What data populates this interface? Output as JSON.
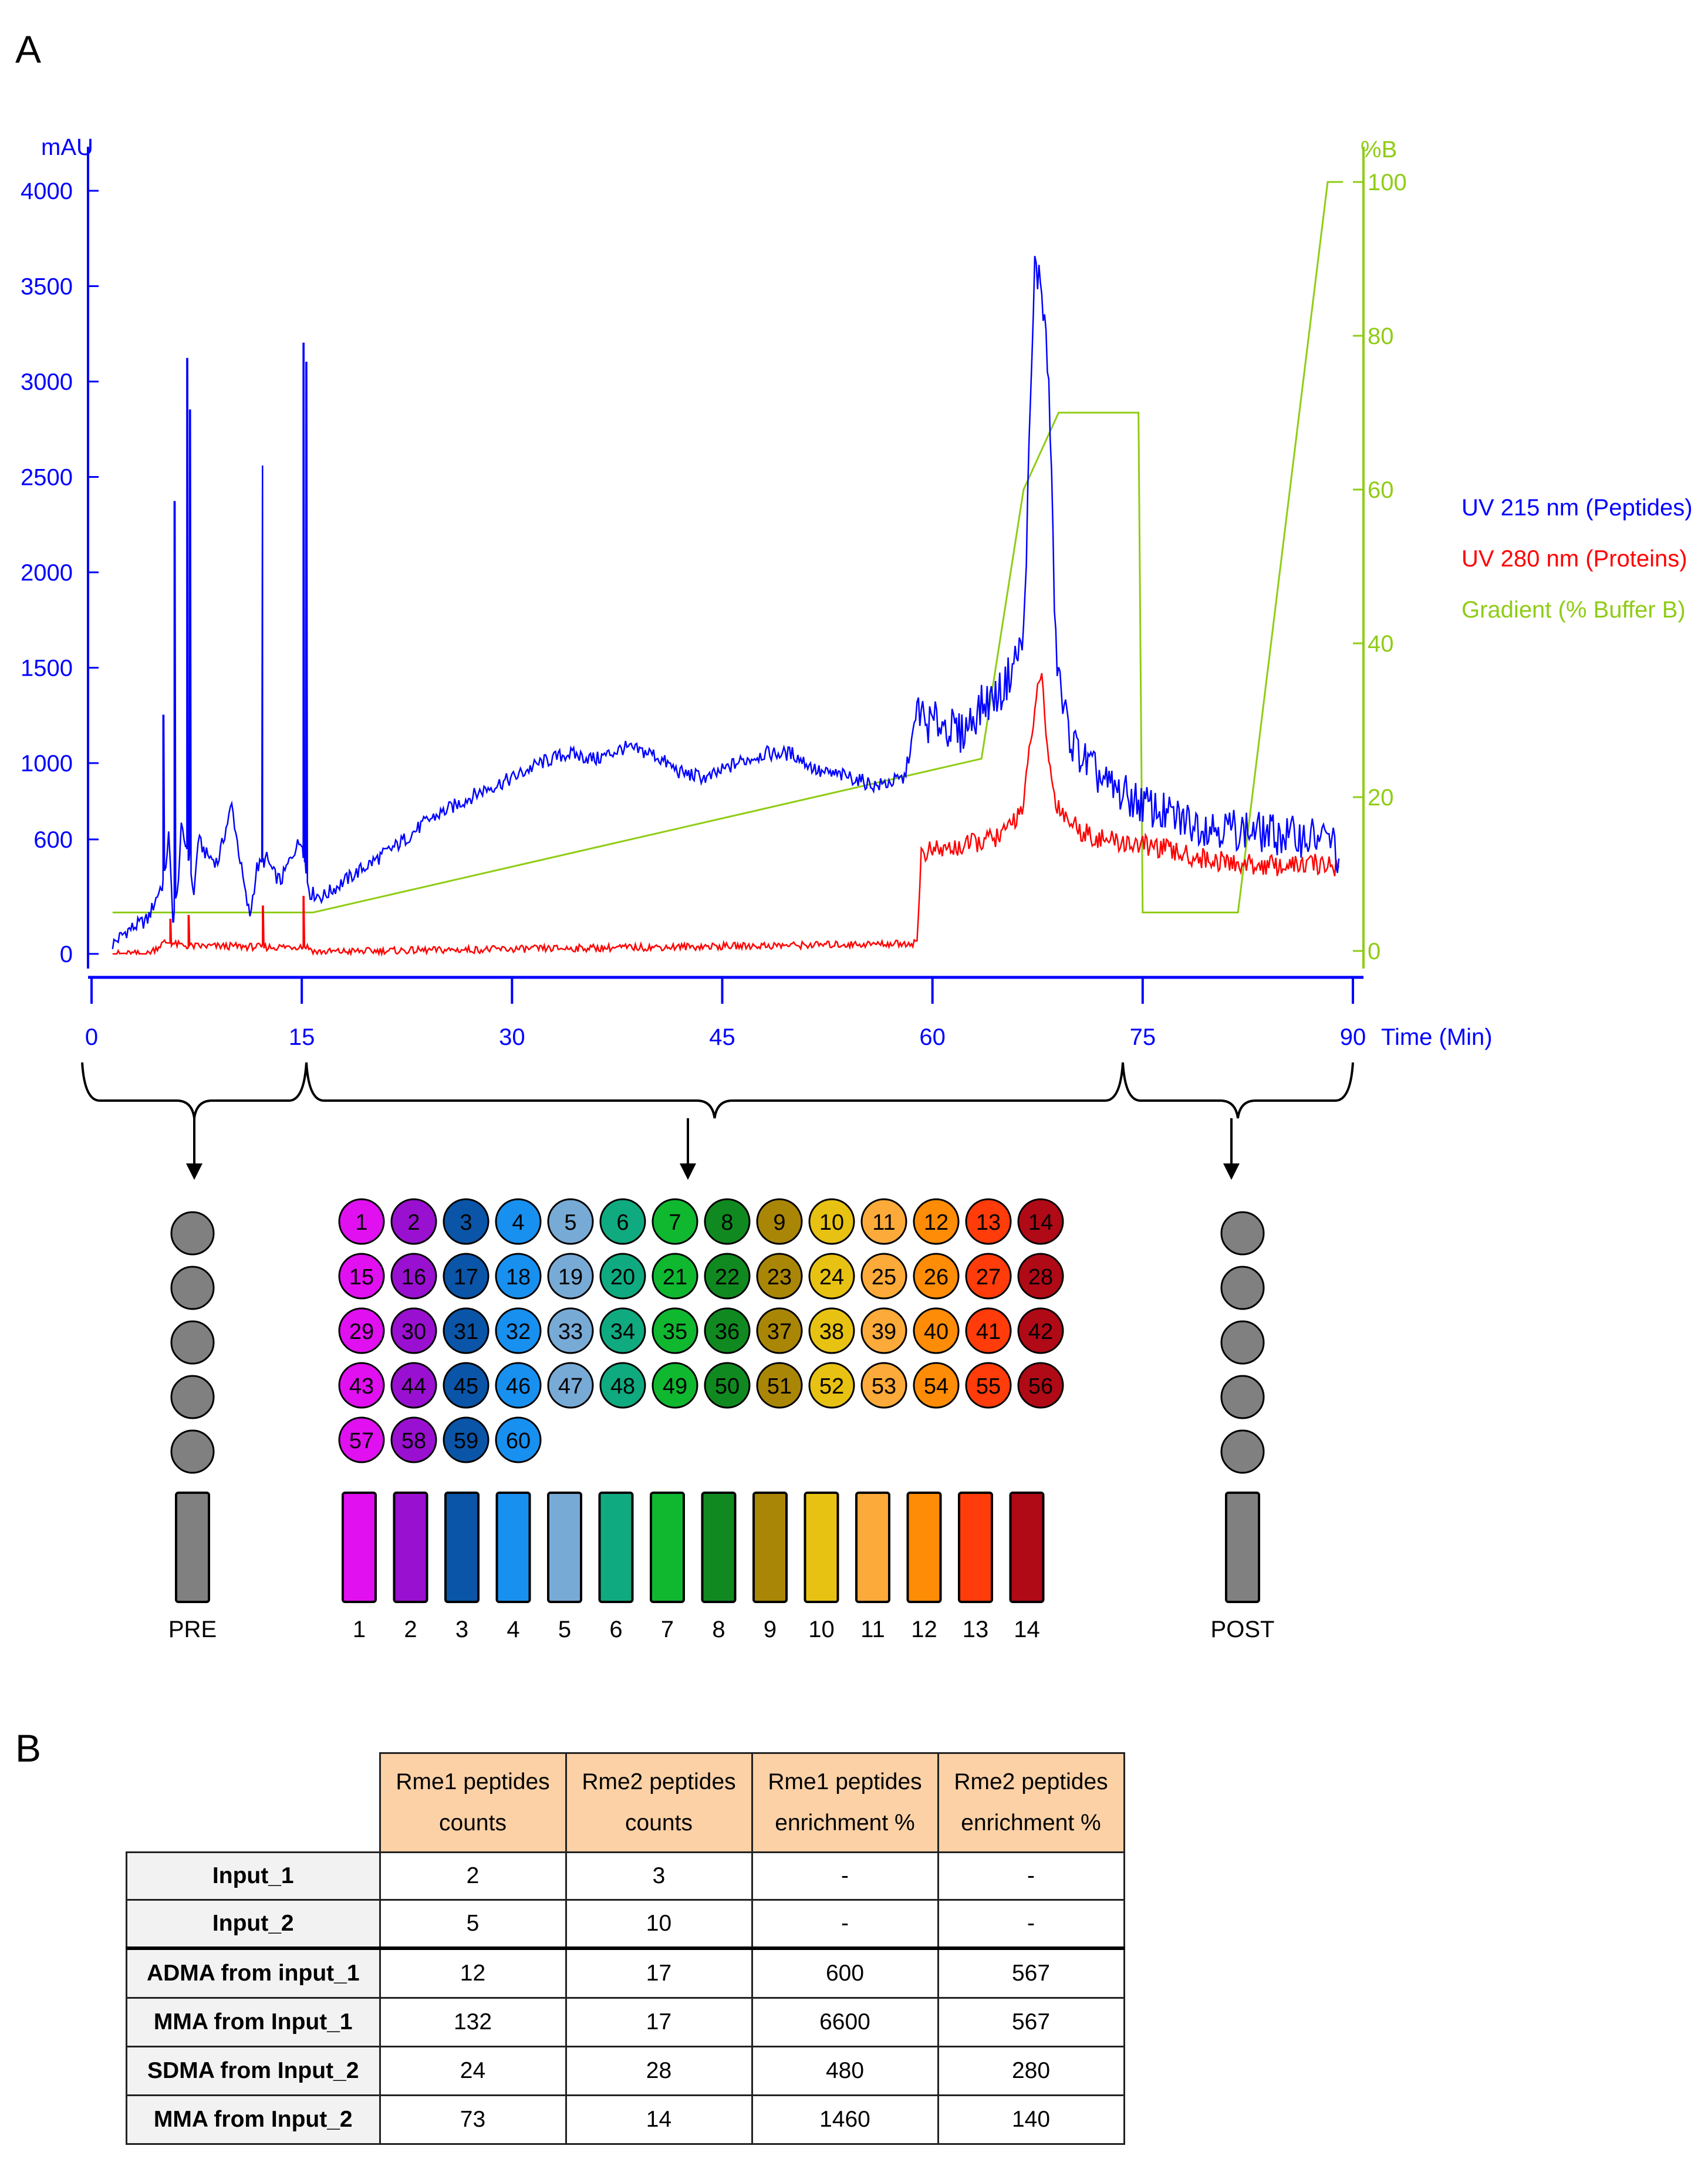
{
  "panels": {
    "a": "A",
    "b": "B"
  },
  "chart_data": {
    "type": "line",
    "title": "",
    "xlabel": "Time (Min)",
    "ylabel_left": "mAU",
    "ylabel_right": "%B",
    "x_range": [
      0,
      90
    ],
    "y_left_range": [
      0,
      4000
    ],
    "y_right_range": [
      0,
      100
    ],
    "x_ticks": [
      0,
      15,
      30,
      45,
      60,
      75,
      90
    ],
    "x_tick_labels": [
      "0",
      "15",
      "30",
      "45",
      "60",
      "75",
      "90"
    ],
    "y_left_ticks": [
      0,
      600,
      1000,
      1500,
      2000,
      2500,
      3000,
      3500,
      4000
    ],
    "y_left_tick_labels": [
      "0",
      "600",
      "1000",
      "1500",
      "2000",
      "2500",
      "3000",
      "3500",
      "4000"
    ],
    "y_right_ticks": [
      0,
      20,
      40,
      60,
      80,
      100
    ],
    "y_right_tick_labels": [
      "0",
      "20",
      "40",
      "60",
      "80",
      "100"
    ],
    "legend": [
      "UV 215 nm (Peptides)",
      "UV 280 nm (Proteins)",
      "Gradient (% Buffer B)"
    ],
    "legend_position": "right",
    "series": [
      {
        "name": "UV 215 nm (Peptides)",
        "axis": "left",
        "color": "#0000ff",
        "x": [
          1.5,
          2.5,
          4.0,
          5.2,
          5.5,
          5.8,
          6.1,
          6.4,
          7.0,
          7.3,
          7.6,
          8.2,
          9.0,
          10.0,
          11.0,
          11.3,
          11.8,
          12.5,
          13.0,
          13.5,
          14.5,
          15.0,
          15.3,
          15.6,
          16.5,
          18,
          20,
          22,
          24,
          26,
          28,
          30,
          32,
          34,
          36,
          38,
          40,
          42,
          44,
          46,
          48,
          50,
          52,
          54,
          56,
          58,
          59.0,
          59.5,
          60.5,
          62,
          63.5,
          65,
          66.5,
          67.3,
          67.8,
          68.3,
          68.8,
          69.3,
          70,
          71,
          72.5,
          74,
          75.5,
          77,
          79,
          81,
          83,
          85,
          87,
          88.5,
          89.0
        ],
        "y": [
          50,
          120,
          180,
          400,
          620,
          200,
          300,
          650,
          500,
          300,
          600,
          520,
          480,
          780,
          300,
          200,
          450,
          500,
          420,
          380,
          550,
          600,
          420,
          320,
          300,
          380,
          480,
          580,
          700,
          780,
          860,
          920,
          1000,
          1050,
          1020,
          1080,
          1050,
          950,
          920,
          1000,
          1050,
          1050,
          950,
          930,
          880,
          920,
          1300,
          1200,
          1220,
          1150,
          1300,
          1380,
          1650,
          3600,
          3500,
          3000,
          1600,
          1300,
          1100,
          1000,
          880,
          820,
          770,
          720,
          680,
          660,
          640,
          620,
          610,
          600,
          500
        ]
      },
      {
        "name": "UV 280 nm (Proteins)",
        "axis": "left",
        "color": "#ff0000",
        "x": [
          1.5,
          4.0,
          5.2,
          5.6,
          6.0,
          7.0,
          7.4,
          10.0,
          12.5,
          13.0,
          15.0,
          15.3,
          16.0,
          20,
          30,
          40,
          50,
          58.5,
          58.9,
          59.2,
          62,
          65,
          66.5,
          67.3,
          67.8,
          68.3,
          68.8,
          69.5,
          70.5,
          72,
          74,
          76,
          78,
          80,
          82,
          85,
          87.5,
          89.0
        ],
        "y": [
          0,
          0,
          60,
          60,
          50,
          40,
          40,
          40,
          35,
          35,
          40,
          40,
          10,
          15,
          25,
          35,
          45,
          55,
          60,
          530,
          560,
          620,
          780,
          1300,
          1450,
          1000,
          800,
          720,
          650,
          600,
          580,
          560,
          520,
          490,
          470,
          460,
          470,
          460
        ]
      },
      {
        "name": "Gradient (% Buffer B)",
        "axis": "right",
        "color": "#8fcc14",
        "x": [
          1.5,
          15.8,
          63.5,
          66.5,
          69,
          69.5,
          74.7,
          75.0,
          81.8,
          88.2,
          89.3
        ],
        "y": [
          5,
          5,
          25,
          60,
          70,
          70,
          70,
          5,
          5,
          100,
          100
        ]
      }
    ],
    "peaks_215": [
      {
        "x": 5.1,
        "y": 1250
      },
      {
        "x": 5.9,
        "y": 2370
      },
      {
        "x": 6.8,
        "y": 3120
      },
      {
        "x": 7.0,
        "y": 2850
      },
      {
        "x": 12.2,
        "y": 2560
      },
      {
        "x": 15.1,
        "y": 3200
      },
      {
        "x": 15.3,
        "y": 3100
      }
    ],
    "spikes_280": [
      {
        "x": 5.6,
        "y": 180
      },
      {
        "x": 6.9,
        "y": 200
      },
      {
        "x": 12.2,
        "y": 250
      },
      {
        "x": 15.1,
        "y": 300
      }
    ]
  },
  "fraction_groups": [
    {
      "label": "PRE",
      "x_range": [
        0,
        15
      ]
    },
    {
      "label": "",
      "x_range": [
        15,
        75
      ]
    },
    {
      "label": "POST",
      "x_range": [
        75,
        90
      ]
    }
  ],
  "fraction_colors": [
    "#e010f0",
    "#9a10d0",
    "#0a55a8",
    "#1890f0",
    "#78aad6",
    "#10aa80",
    "#10b830",
    "#108a20",
    "#aa8606",
    "#e8c212",
    "#fcaa3a",
    "#ff8c06",
    "#ff3c0a",
    "#b00a16"
  ],
  "collected_fractions": [
    "1",
    "2",
    "3",
    "4",
    "5",
    "6",
    "7",
    "8",
    "9",
    "10",
    "11",
    "12",
    "13",
    "14",
    "15",
    "16",
    "17",
    "18",
    "19",
    "20",
    "21",
    "22",
    "23",
    "24",
    "25",
    "26",
    "27",
    "28",
    "29",
    "30",
    "31",
    "32",
    "33",
    "34",
    "35",
    "36",
    "37",
    "38",
    "39",
    "40",
    "41",
    "42",
    "43",
    "44",
    "45",
    "46",
    "47",
    "48",
    "49",
    "50",
    "51",
    "52",
    "53",
    "54",
    "55",
    "56",
    "57",
    "58",
    "59",
    "60"
  ],
  "pooled_labels": [
    "1",
    "2",
    "3",
    "4",
    "5",
    "6",
    "7",
    "8",
    "9",
    "10",
    "11",
    "12",
    "13",
    "14"
  ],
  "pre_post_fraction_count": 5,
  "side_color": "#808080",
  "table": {
    "headers": [
      "Rme1 peptides counts",
      "Rme2 peptides counts",
      "Rme1 peptides enrichment %",
      "Rme2 peptides enrichment %"
    ],
    "header_lines": [
      [
        "Rme1 peptides",
        "counts"
      ],
      [
        "Rme2 peptides",
        "counts"
      ],
      [
        "Rme1 peptides",
        "enrichment %"
      ],
      [
        "Rme2 peptides",
        "enrichment %"
      ]
    ],
    "rows": [
      {
        "label": "Input_1",
        "values": [
          "2",
          "3",
          "-",
          "-"
        ]
      },
      {
        "label": "Input_2",
        "values": [
          "5",
          "10",
          "-",
          "-"
        ]
      },
      {
        "label": "ADMA from input_1",
        "values": [
          "12",
          "17",
          "600",
          "567"
        ]
      },
      {
        "label": "MMA from Input_1",
        "values": [
          "132",
          "17",
          "6600",
          "567"
        ]
      },
      {
        "label": "SDMA from Input_2",
        "values": [
          "24",
          "28",
          "480",
          "280"
        ]
      },
      {
        "label": "MMA from Input_2",
        "values": [
          "73",
          "14",
          "1460",
          "140"
        ]
      }
    ]
  }
}
